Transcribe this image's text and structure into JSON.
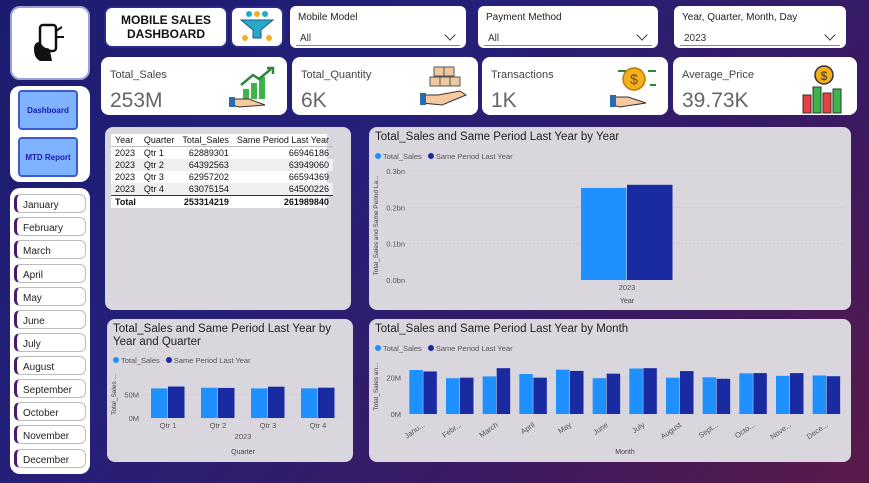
{
  "header": {
    "title_line1": "MOBILE SALES",
    "title_line2": "DASHBOARD"
  },
  "nav": {
    "dashboard_label": "Dashboard",
    "mtd_label": "MTD Report"
  },
  "months": [
    "January",
    "February",
    "March",
    "April",
    "May",
    "June",
    "July",
    "August",
    "September",
    "October",
    "November",
    "December"
  ],
  "slicers": {
    "model": {
      "label": "Mobile Model",
      "value": "All"
    },
    "payment": {
      "label": "Payment Method",
      "value": "All"
    },
    "date": {
      "label": "Year, Quarter, Month, Day",
      "value": "2023"
    }
  },
  "kpis": {
    "sales": {
      "label": "Total_Sales",
      "value": "253M"
    },
    "qty": {
      "label": "Total_Quantity",
      "value": "6K"
    },
    "trans": {
      "label": "Transactions",
      "value": "1K"
    },
    "price": {
      "label": "Average_Price",
      "value": "39.73K"
    }
  },
  "table": {
    "headers": [
      "Year",
      "Quarter",
      "Total_Sales",
      "Same Period Last Year"
    ],
    "rows": [
      [
        "2023",
        "Qtr 1",
        "62889301",
        "66946186"
      ],
      [
        "2023",
        "Qtr 2",
        "64392563",
        "63949060"
      ],
      [
        "2023",
        "Qtr 3",
        "62957202",
        "66594369"
      ],
      [
        "2023",
        "Qtr 4",
        "63075154",
        "64500226"
      ]
    ],
    "total": [
      "Total",
      "",
      "253314219",
      "261989840"
    ]
  },
  "colors": {
    "total_sales": "#1e90ff",
    "same_period": "#1a2aa0"
  },
  "legend": {
    "a": "Total_Sales",
    "b": "Same Period Last Year"
  },
  "chart_data": [
    {
      "type": "bar",
      "title": "Total_Sales and Same Period Last Year by Year",
      "categories": [
        "2023"
      ],
      "series": [
        {
          "name": "Total_Sales",
          "values": [
            253314219
          ]
        },
        {
          "name": "Same Period Last Year",
          "values": [
            261989840
          ]
        }
      ],
      "xlabel": "Year",
      "ylabel": "Total_Sales and Same Period La...",
      "yticks": [
        "0.0bn",
        "0.1bn",
        "0.2bn",
        "0.3bn"
      ],
      "ylim": [
        0,
        300000000
      ],
      "legend": "top-left"
    },
    {
      "type": "bar",
      "title_line1": "Total_Sales and Same Period Last Year by",
      "title_line2": "Year and Quarter",
      "categories": [
        "Qtr 1",
        "Qtr 2",
        "Qtr 3",
        "Qtr 4"
      ],
      "group_label": "2023",
      "series": [
        {
          "name": "Total_Sales",
          "values": [
            62889301,
            64392563,
            62957202,
            63075154
          ]
        },
        {
          "name": "Same Period Last Year",
          "values": [
            66946186,
            63949060,
            66594369,
            64500226
          ]
        }
      ],
      "xlabel": "Quarter",
      "ylabel": "Total_Sales ...",
      "yticks": [
        "0M",
        "50M"
      ],
      "ylim": [
        0,
        100000000
      ],
      "legend": "top-left"
    },
    {
      "type": "bar",
      "title": "Total_Sales and Same Period Last Year by Month",
      "categories": [
        "Janu...",
        "Febr...",
        "March",
        "April",
        "May",
        "June",
        "July",
        "August",
        "Sept...",
        "Octo...",
        "Nove...",
        "Dece..."
      ],
      "series": [
        {
          "name": "Total_Sales",
          "values": [
            24000000,
            19500000,
            20500000,
            21800000,
            24200000,
            19500000,
            24800000,
            19800000,
            20000000,
            22200000,
            20800000,
            21000000
          ]
        },
        {
          "name": "Same Period Last Year",
          "values": [
            23200000,
            19800000,
            25000000,
            19800000,
            23500000,
            22000000,
            25000000,
            23400000,
            19200000,
            22300000,
            22300000,
            20600000
          ]
        }
      ],
      "xlabel": "Month",
      "ylabel": "Total_Sales an...",
      "yticks": [
        "0M",
        "20M"
      ],
      "ylim": [
        0,
        30000000
      ],
      "legend": "top-left"
    }
  ]
}
